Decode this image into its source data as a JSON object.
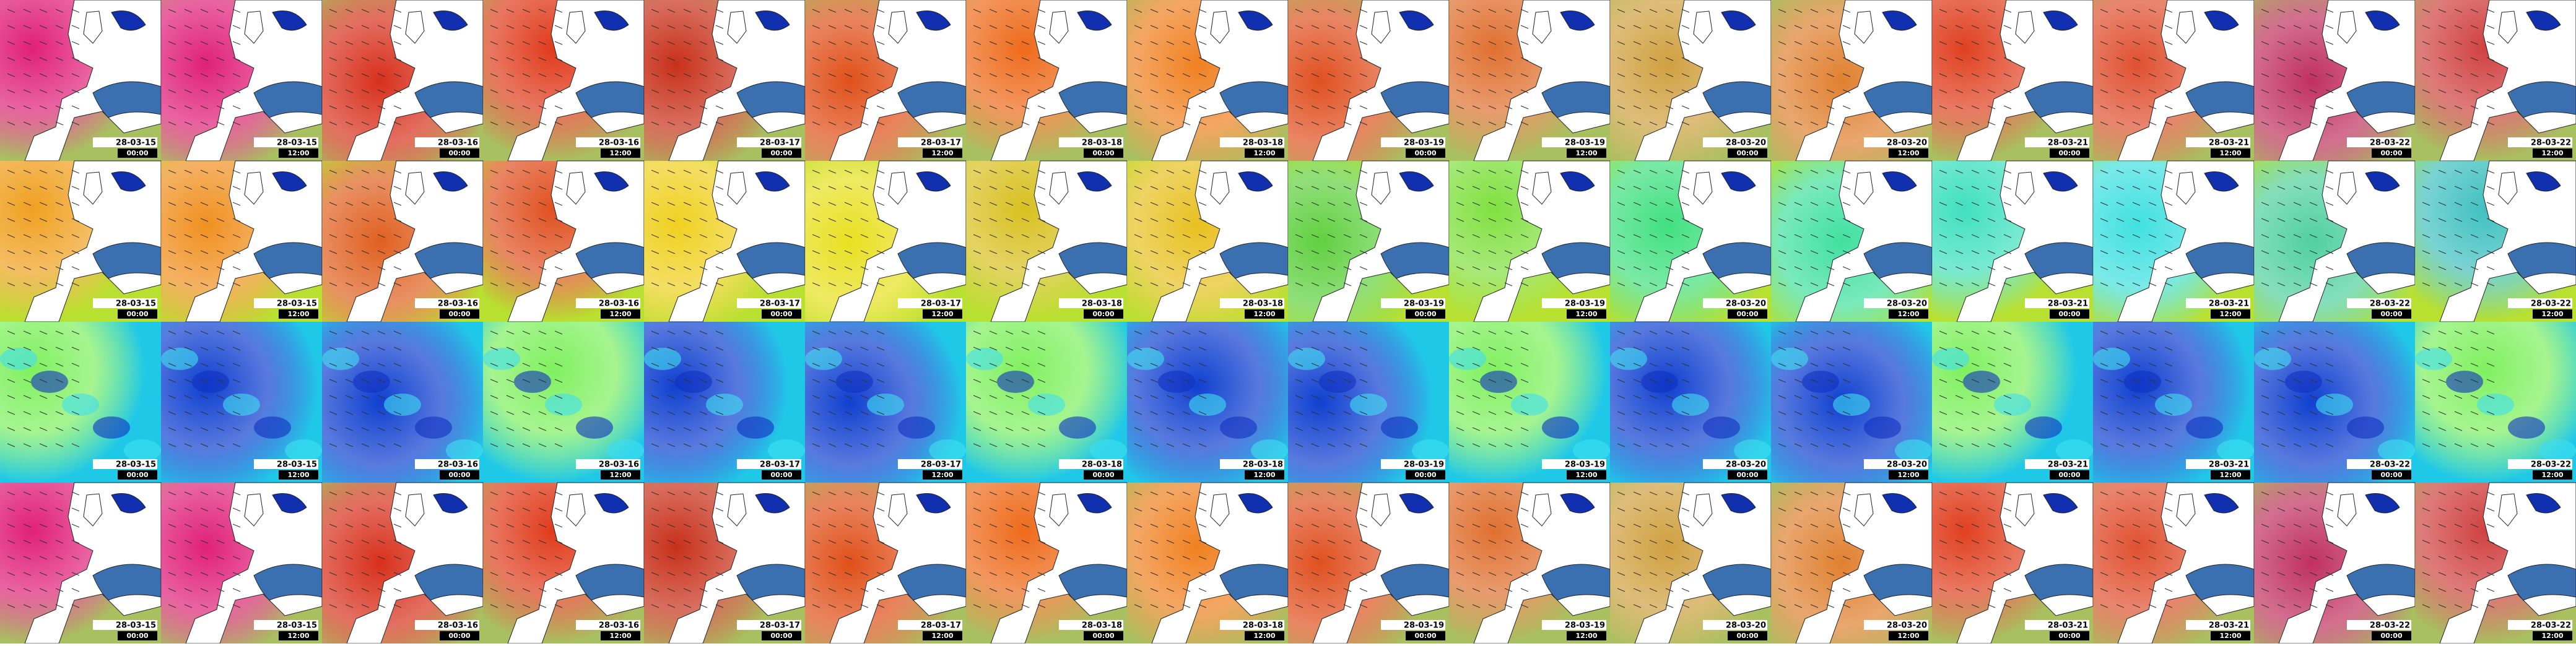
{
  "rows": [
    {
      "tiles": [
        {
          "date": "28-03-15",
          "time": "00:00"
        },
        {
          "date": "28-03-15",
          "time": "12:00"
        },
        {
          "date": "28-03-16",
          "time": "00:00"
        },
        {
          "date": "28-03-16",
          "time": "12:00"
        },
        {
          "date": "28-03-17",
          "time": "00:00"
        },
        {
          "date": "28-03-17",
          "time": "12:00"
        },
        {
          "date": "28-03-18",
          "time": "00:00"
        },
        {
          "date": "28-03-18",
          "time": "12:00"
        },
        {
          "date": "28-03-19",
          "time": "00:00"
        },
        {
          "date": "28-03-19",
          "time": "12:00"
        },
        {
          "date": "28-03-20",
          "time": "00:00"
        },
        {
          "date": "28-03-20",
          "time": "12:00"
        },
        {
          "date": "28-03-21",
          "time": "00:00"
        },
        {
          "date": "28-03-21",
          "time": "12:00"
        },
        {
          "date": "28-03-22",
          "time": "00:00"
        },
        {
          "date": "28-03-22",
          "time": "12:00"
        }
      ]
    },
    {
      "tiles": [
        {
          "date": "28-03-15",
          "time": "00:00"
        },
        {
          "date": "28-03-15",
          "time": "12:00"
        },
        {
          "date": "28-03-16",
          "time": "00:00"
        },
        {
          "date": "28-03-16",
          "time": "12:00"
        },
        {
          "date": "28-03-17",
          "time": "00:00"
        },
        {
          "date": "28-03-17",
          "time": "12:00"
        },
        {
          "date": "28-03-18",
          "time": "00:00"
        },
        {
          "date": "28-03-18",
          "time": "12:00"
        },
        {
          "date": "28-03-19",
          "time": "00:00"
        },
        {
          "date": "28-03-19",
          "time": "12:00"
        },
        {
          "date": "28-03-20",
          "time": "00:00"
        },
        {
          "date": "28-03-20",
          "time": "12:00"
        },
        {
          "date": "28-03-21",
          "time": "00:00"
        },
        {
          "date": "28-03-21",
          "time": "12:00"
        },
        {
          "date": "28-03-22",
          "time": "00:00"
        },
        {
          "date": "28-03-22",
          "time": "12:00"
        }
      ]
    },
    {
      "tiles": [
        {
          "date": "28-03-15",
          "time": "00:00"
        },
        {
          "date": "28-03-15",
          "time": "12:00"
        },
        {
          "date": "28-03-16",
          "time": "00:00"
        },
        {
          "date": "28-03-16",
          "time": "12:00"
        },
        {
          "date": "28-03-17",
          "time": "00:00"
        },
        {
          "date": "28-03-17",
          "time": "12:00"
        },
        {
          "date": "28-03-18",
          "time": "00:00"
        },
        {
          "date": "28-03-18",
          "time": "12:00"
        },
        {
          "date": "28-03-19",
          "time": "00:00"
        },
        {
          "date": "28-03-19",
          "time": "12:00"
        },
        {
          "date": "28-03-20",
          "time": "00:00"
        },
        {
          "date": "28-03-20",
          "time": "12:00"
        },
        {
          "date": "28-03-21",
          "time": "00:00"
        },
        {
          "date": "28-03-21",
          "time": "12:00"
        },
        {
          "date": "28-03-22",
          "time": "00:00"
        },
        {
          "date": "28-03-22",
          "time": "12:00"
        }
      ]
    },
    {
      "tiles": [
        {
          "date": "28-03-15",
          "time": "00:00"
        },
        {
          "date": "28-03-15",
          "time": "12:00"
        },
        {
          "date": "28-03-16",
          "time": "00:00"
        },
        {
          "date": "28-03-16",
          "time": "12:00"
        },
        {
          "date": "28-03-17",
          "time": "00:00"
        },
        {
          "date": "28-03-17",
          "time": "12:00"
        },
        {
          "date": "28-03-18",
          "time": "00:00"
        },
        {
          "date": "28-03-18",
          "time": "12:00"
        },
        {
          "date": "28-03-19",
          "time": "00:00"
        },
        {
          "date": "28-03-19",
          "time": "12:00"
        },
        {
          "date": "28-03-20",
          "time": "00:00"
        },
        {
          "date": "28-03-20",
          "time": "12:00"
        },
        {
          "date": "28-03-21",
          "time": "00:00"
        },
        {
          "date": "28-03-21",
          "time": "12:00"
        },
        {
          "date": "28-03-22",
          "time": "00:00"
        },
        {
          "date": "28-03-22",
          "time": "12:00"
        }
      ]
    }
  ]
}
